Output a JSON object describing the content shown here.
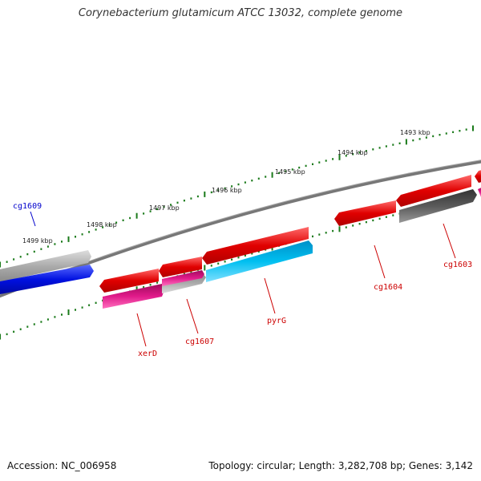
{
  "title": "Corynebacterium glutamicum ATCC 13032, complete genome",
  "footer": {
    "accession": "Accession: NC_006958",
    "summary": "Topology: circular; Length: 3,282,708 bp; Genes: 3,142"
  },
  "kbp_labels": [
    "1499 kbp",
    "1498 kbp",
    "1497 kbp",
    "1496 kbp",
    "1495 kbp",
    "1494 kbp",
    "1493 kbp"
  ],
  "gene_labels": [
    {
      "name": "cg1609",
      "color": "#0000cc"
    },
    {
      "name": "xerD",
      "color": "#cc0000"
    },
    {
      "name": "cg1607",
      "color": "#cc0000"
    },
    {
      "name": "pyrG",
      "color": "#cc0000"
    },
    {
      "name": "cg1604",
      "color": "#cc0000"
    },
    {
      "name": "cg1603",
      "color": "#cc0000"
    }
  ],
  "colors": {
    "backbone": "#777777",
    "ticks": "#1a7a1a",
    "red_gene": "#e00000",
    "blue_gene": "#0010e0",
    "cyan_gene": "#00b4ee",
    "magenta_gene": "#d0127a",
    "grey_gene": "#aaaaaa",
    "darkgrey_gene": "#555555"
  }
}
